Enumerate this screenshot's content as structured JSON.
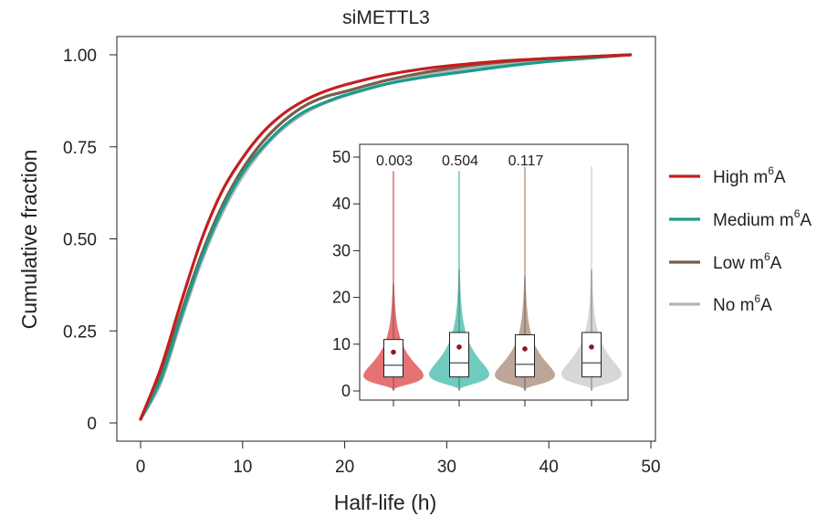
{
  "chart_data": {
    "type": "line",
    "title": "siMETTL3",
    "xlabel": "Half-life (h)",
    "ylabel": "Cumulative fraction",
    "xlim": [
      0,
      50
    ],
    "ylim": [
      0,
      1
    ],
    "xticks": [
      0,
      10,
      20,
      30,
      40,
      50
    ],
    "xtick_labels": [
      "0",
      "10",
      "20",
      "30",
      "40",
      "50"
    ],
    "yticks": [
      0,
      0.25,
      0.5,
      0.75,
      1.0
    ],
    "ytick_labels": [
      "0",
      "0.25",
      "0.50",
      "0.75",
      "1.00"
    ],
    "legend_position": "right",
    "series": [
      {
        "name": "High m6A",
        "label_main": "High m",
        "label_sup": "6",
        "label_tail": "A",
        "color": "#c41e1e",
        "x": [
          0,
          2,
          4,
          6,
          8,
          10,
          12,
          14,
          16,
          18,
          20,
          24,
          28,
          32,
          36,
          40,
          44,
          48
        ],
        "y": [
          0.01,
          0.15,
          0.33,
          0.5,
          0.63,
          0.72,
          0.79,
          0.84,
          0.875,
          0.9,
          0.918,
          0.945,
          0.963,
          0.975,
          0.984,
          0.99,
          0.995,
          1.0
        ]
      },
      {
        "name": "Medium m6A",
        "label_main": "Medium m",
        "label_sup": "6",
        "label_tail": "A",
        "color": "#1a9c8c",
        "x": [
          0,
          2,
          4,
          6,
          8,
          10,
          12,
          14,
          16,
          18,
          20,
          24,
          28,
          32,
          36,
          40,
          44,
          48
        ],
        "y": [
          0.01,
          0.12,
          0.29,
          0.45,
          0.58,
          0.68,
          0.75,
          0.805,
          0.845,
          0.87,
          0.89,
          0.92,
          0.94,
          0.955,
          0.97,
          0.982,
          0.991,
          1.0
        ]
      },
      {
        "name": "Low m6A",
        "label_main": "Low m",
        "label_sup": "6",
        "label_tail": "A",
        "color": "#7a5c48",
        "x": [
          0,
          2,
          4,
          6,
          8,
          10,
          12,
          14,
          16,
          18,
          20,
          24,
          28,
          32,
          36,
          40,
          44,
          48
        ],
        "y": [
          0.01,
          0.13,
          0.3,
          0.46,
          0.59,
          0.69,
          0.765,
          0.82,
          0.86,
          0.885,
          0.9,
          0.93,
          0.953,
          0.97,
          0.982,
          0.99,
          0.995,
          1.0
        ]
      },
      {
        "name": "No m6A",
        "label_main": "No m",
        "label_sup": "6",
        "label_tail": "A",
        "color": "#b5b5b5",
        "x": [
          0,
          2,
          4,
          6,
          8,
          10,
          12,
          14,
          16,
          18,
          20,
          24,
          28,
          32,
          36,
          40,
          44,
          48
        ],
        "y": [
          0.01,
          0.11,
          0.28,
          0.44,
          0.57,
          0.67,
          0.745,
          0.8,
          0.84,
          0.868,
          0.888,
          0.92,
          0.945,
          0.962,
          0.976,
          0.986,
          0.993,
          1.0
        ]
      }
    ],
    "inset": {
      "type": "violin",
      "ylim": [
        0,
        50
      ],
      "yticks": [
        0,
        10,
        20,
        30,
        40,
        50
      ],
      "ytick_labels": [
        "0",
        "10",
        "20",
        "30",
        "40",
        "50"
      ],
      "groups": [
        {
          "name": "High m6A",
          "p_value": "0.003",
          "fill": "#e57373",
          "max": 47,
          "q1": 3,
          "median": 5.5,
          "q3": 11,
          "whisker_high": 23,
          "mean": 8.3
        },
        {
          "name": "Medium m6A",
          "p_value": "0.504",
          "fill": "#6fcbbf",
          "max": 47,
          "q1": 3,
          "median": 6,
          "q3": 12.5,
          "whisker_high": 26,
          "mean": 9.4
        },
        {
          "name": "Low m6A",
          "p_value": "0.117",
          "fill": "#bca697",
          "max": 48,
          "q1": 3,
          "median": 5.7,
          "q3": 12,
          "whisker_high": 24.5,
          "mean": 9.0
        },
        {
          "name": "No m6A",
          "p_value": "",
          "fill": "#d7d7d7",
          "max": 48,
          "q1": 3,
          "median": 6,
          "q3": 12.5,
          "whisker_high": 26,
          "mean": 9.4
        }
      ]
    }
  }
}
